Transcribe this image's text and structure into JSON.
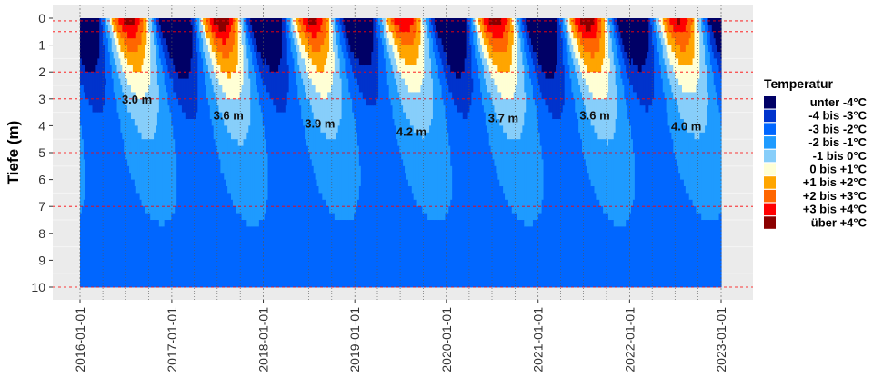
{
  "chart_data": {
    "type": "heatmap",
    "ylabel": "Tiefe (m)",
    "xlabel": "",
    "x_tick_labels": [
      "2016-01-01",
      "2017-01-01",
      "2018-01-01",
      "2019-01-01",
      "2020-01-01",
      "2021-01-01",
      "2022-01-01",
      "2023-01-01"
    ],
    "x_range": [
      "2016-01-01",
      "2023-01-01"
    ],
    "y_tick_labels": [
      "0",
      "1",
      "2",
      "3",
      "4",
      "5",
      "6",
      "7",
      "8",
      "9",
      "10"
    ],
    "y_range": [
      0,
      10
    ],
    "y_reversed": true,
    "panel_background": "#ebebeb",
    "reference_lines_color": "#ff0000",
    "reference_line_depths": [
      0.1,
      0.5,
      1,
      2,
      3,
      5,
      7,
      10
    ],
    "legend": {
      "title": "Temperatur",
      "position": "right",
      "entries": [
        {
          "label": "unter -4°C",
          "color": "#000066"
        },
        {
          "label": "-4 bis -3°C",
          "color": "#0033cc"
        },
        {
          "label": "-3 bis -2°C",
          "color": "#0066ff"
        },
        {
          "label": "-2 bis -1°C",
          "color": "#1e9bff"
        },
        {
          "label": "-1 bis 0°C",
          "color": "#87cefa"
        },
        {
          "label": "0 bis +1°C",
          "color": "#ffffd5"
        },
        {
          "label": "+1 bis +2°C",
          "color": "#ffa500"
        },
        {
          "label": "+2 bis +3°C",
          "color": "#ff6600"
        },
        {
          "label": "+3 bis +4°C",
          "color": "#ff0000"
        },
        {
          "label": "über +4°C",
          "color": "#8b0000"
        }
      ]
    },
    "thaw_depth_labels": [
      {
        "year": 2016,
        "date": "2016-08-15",
        "depth_m": 3.0,
        "label": "3.0 m"
      },
      {
        "year": 2017,
        "date": "2017-08-15",
        "depth_m": 3.6,
        "label": "3.6 m"
      },
      {
        "year": 2018,
        "date": "2018-08-15",
        "depth_m": 3.9,
        "label": "3.9 m"
      },
      {
        "year": 2019,
        "date": "2019-08-15",
        "depth_m": 4.2,
        "label": "4.2 m"
      },
      {
        "year": 2020,
        "date": "2020-08-15",
        "depth_m": 3.7,
        "label": "3.7 m"
      },
      {
        "year": 2021,
        "date": "2021-08-15",
        "depth_m": 3.6,
        "label": "3.6 m"
      },
      {
        "year": 2022,
        "date": "2022-08-15",
        "depth_m": 4.0,
        "label": "4.0 m"
      }
    ]
  }
}
